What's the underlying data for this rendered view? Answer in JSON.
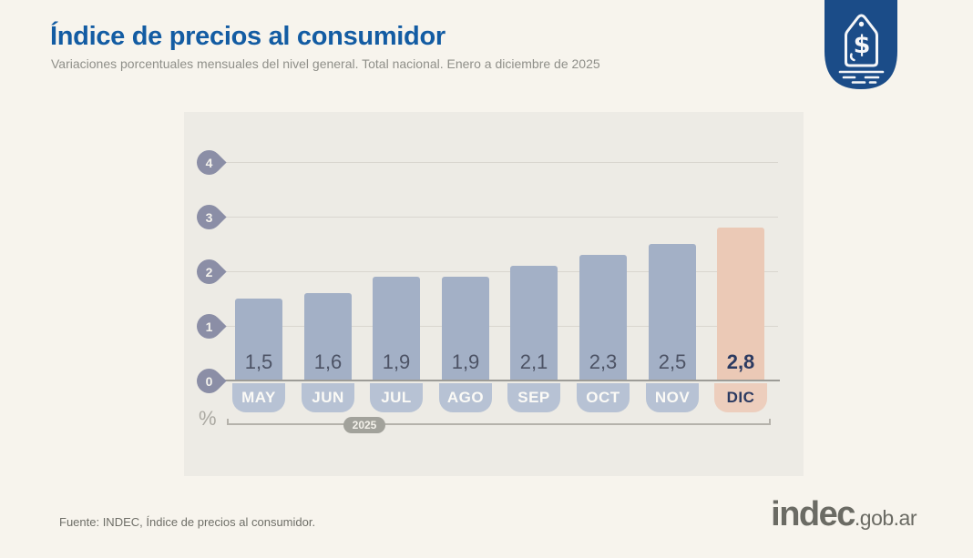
{
  "header": {
    "title": "Índice de precios al consumidor",
    "subtitle": "Variaciones porcentuales mensuales del nivel general. Total nacional. Enero a diciembre de 2025"
  },
  "badge": {
    "icon": "price-tag-dollar-icon",
    "color": "#1b4c88"
  },
  "chart_data": {
    "type": "bar",
    "title": "Índice de precios al consumidor",
    "subtitle": "Variaciones porcentuales mensuales del nivel general. Total nacional. Enero a diciembre de 2025",
    "categories": [
      "MAY",
      "JUN",
      "JUL",
      "AGO",
      "SEP",
      "OCT",
      "NOV",
      "DIC"
    ],
    "values": [
      1.5,
      1.6,
      1.9,
      1.9,
      2.1,
      2.3,
      2.5,
      2.8
    ],
    "value_labels": [
      "1,5",
      "1,6",
      "1,9",
      "1,9",
      "2,1",
      "2,3",
      "2,5",
      "2,8"
    ],
    "highlight_index": 7,
    "ylabel": "%",
    "yticks": [
      0,
      1,
      2,
      3,
      4
    ],
    "ylim": [
      0,
      4
    ],
    "x_axis_group_label": "2025",
    "grid": true,
    "legend": "none",
    "bar_color": "#a3b0c6",
    "highlight_color": "#ebc9b6",
    "pill_color": "#b7c2d4",
    "highlight_pill_color": "#edcebd",
    "marker_color": "#8b8ea6"
  },
  "footer": {
    "source": "Fuente: INDEC, Índice de precios al consumidor.",
    "logo_main": "indec",
    "logo_suffix": ".gob.ar"
  }
}
